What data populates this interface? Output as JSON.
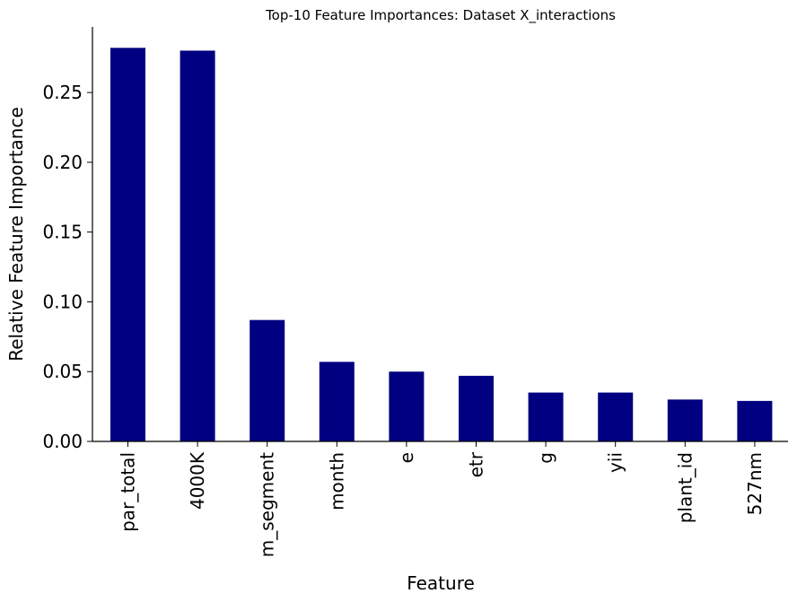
{
  "chart_data": {
    "type": "bar",
    "title": "Top-10 Feature Importances: Dataset X_interactions",
    "xlabel": "Feature",
    "ylabel": "Relative Feature Importance",
    "categories": [
      "par_total",
      "4000K",
      "m_segment",
      "month",
      "e",
      "etr",
      "g",
      "yii",
      "plant_id",
      "527nm"
    ],
    "values": [
      0.282,
      0.28,
      0.087,
      0.057,
      0.05,
      0.047,
      0.035,
      0.035,
      0.03,
      0.029
    ],
    "ylim": [
      0,
      0.297
    ],
    "yticks": [
      "0.00",
      "0.05",
      "0.10",
      "0.15",
      "0.20",
      "0.25"
    ],
    "bar_color": "#000080",
    "grid": false,
    "legend": "none"
  }
}
